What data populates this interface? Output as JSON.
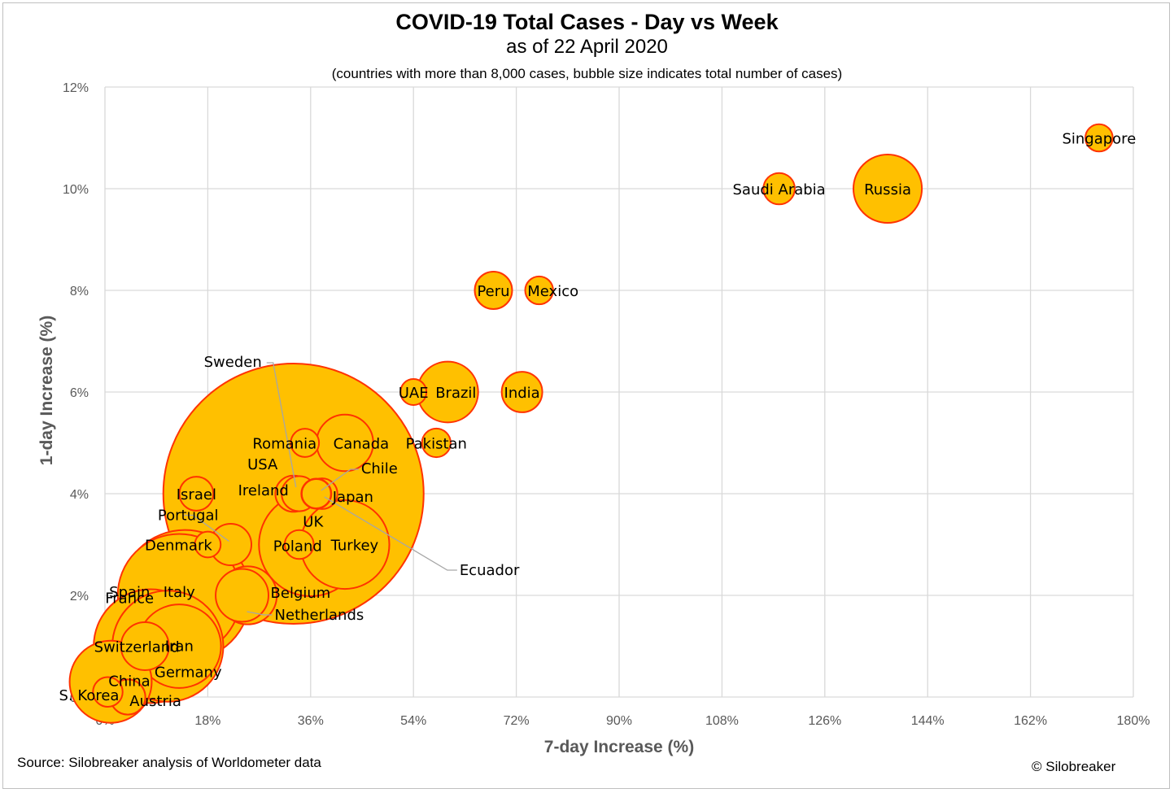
{
  "chart_data": {
    "type": "scatter",
    "subtype": "bubble",
    "title": "COVID-19 Total Cases - Day vs Week",
    "subtitle": "as of 22 April 2020",
    "note": "(countries with more than 8,000 cases, bubble size indicates total number of cases)",
    "xlabel": "7-day Increase (%)",
    "ylabel": "1-day Increase (%)",
    "xlim": [
      0,
      180
    ],
    "ylim": [
      0,
      12
    ],
    "x_ticks": [
      "0%",
      "18%",
      "36%",
      "54%",
      "72%",
      "90%",
      "108%",
      "126%",
      "144%",
      "162%",
      "180%"
    ],
    "y_ticks": [
      "0%",
      "2%",
      "4%",
      "6%",
      "8%",
      "10%",
      "12%"
    ],
    "grid": true,
    "colors": {
      "bubble_fill": "#FFC000",
      "bubble_edge": "#FF3300",
      "grid": "#D9D9D9",
      "axis_text": "#595959"
    },
    "points": [
      {
        "name": "USA",
        "x": 33,
        "y": 4,
        "cases": 825000
      },
      {
        "name": "Spain",
        "x": 14,
        "y": 2,
        "cases": 208000
      },
      {
        "name": "Italy",
        "x": 13,
        "y": 2,
        "cases": 184000
      },
      {
        "name": "France",
        "x": 8,
        "y": 1,
        "cases": 158000
      },
      {
        "name": "Germany",
        "x": 11,
        "y": 1,
        "cases": 150000
      },
      {
        "name": "UK",
        "x": 36,
        "y": 3,
        "cases": 130000
      },
      {
        "name": "Turkey",
        "x": 42,
        "y": 3,
        "cases": 96000
      },
      {
        "name": "Iran",
        "x": 13,
        "y": 1,
        "cases": 85000
      },
      {
        "name": "China",
        "x": 1,
        "y": 0.3,
        "cases": 82000
      },
      {
        "name": "Russia",
        "x": 137,
        "y": 10,
        "cases": 57000
      },
      {
        "name": "Brazil",
        "x": 60,
        "y": 6,
        "cases": 45000
      },
      {
        "name": "Belgium",
        "x": 25,
        "y": 2,
        "cases": 41000
      },
      {
        "name": "Canada",
        "x": 42,
        "y": 5,
        "cases": 39000
      },
      {
        "name": "Netherlands",
        "x": 24,
        "y": 2,
        "cases": 34000
      },
      {
        "name": "Switzerland",
        "x": 7,
        "y": 1,
        "cases": 28000
      },
      {
        "name": "Portugal",
        "x": 22,
        "y": 3,
        "cases": 21000
      },
      {
        "name": "India",
        "x": 73,
        "y": 6,
        "cases": 20000
      },
      {
        "name": "Peru",
        "x": 68,
        "y": 8,
        "cases": 17000
      },
      {
        "name": "Ireland",
        "x": 33,
        "y": 4,
        "cases": 16000
      },
      {
        "name": "Sweden",
        "x": 34,
        "y": 4,
        "cases": 15000
      },
      {
        "name": "Austria",
        "x": 4,
        "y": 0,
        "cases": 15000
      },
      {
        "name": "Israel",
        "x": 16,
        "y": 4,
        "cases": 14000
      },
      {
        "name": "Saudi Arabia",
        "x": 118,
        "y": 10,
        "cases": 12000
      },
      {
        "name": "Japan",
        "x": 38,
        "y": 4,
        "cases": 11500
      },
      {
        "name": "Chile",
        "x": 37,
        "y": 4,
        "cases": 11000
      },
      {
        "name": "S. Korea",
        "x": 0.5,
        "y": 0.1,
        "cases": 10700
      },
      {
        "name": "Ecuador",
        "x": 37,
        "y": 4,
        "cases": 10400
      },
      {
        "name": "Poland",
        "x": 34,
        "y": 3,
        "cases": 10200
      },
      {
        "name": "Pakistan",
        "x": 58,
        "y": 5,
        "cases": 10000
      },
      {
        "name": "Romania",
        "x": 35,
        "y": 5,
        "cases": 9700
      },
      {
        "name": "Mexico",
        "x": 76,
        "y": 8,
        "cases": 9500
      },
      {
        "name": "Denmark",
        "x": 18,
        "y": 3,
        "cases": 8100
      },
      {
        "name": "UAE",
        "x": 54,
        "y": 6,
        "cases": 8200
      },
      {
        "name": "Singapore",
        "x": 174,
        "y": 11,
        "cases": 9100
      }
    ]
  },
  "footer": {
    "source": "Source: Silobreaker analysis of Worldometer data",
    "copyright": "© Silobreaker"
  }
}
